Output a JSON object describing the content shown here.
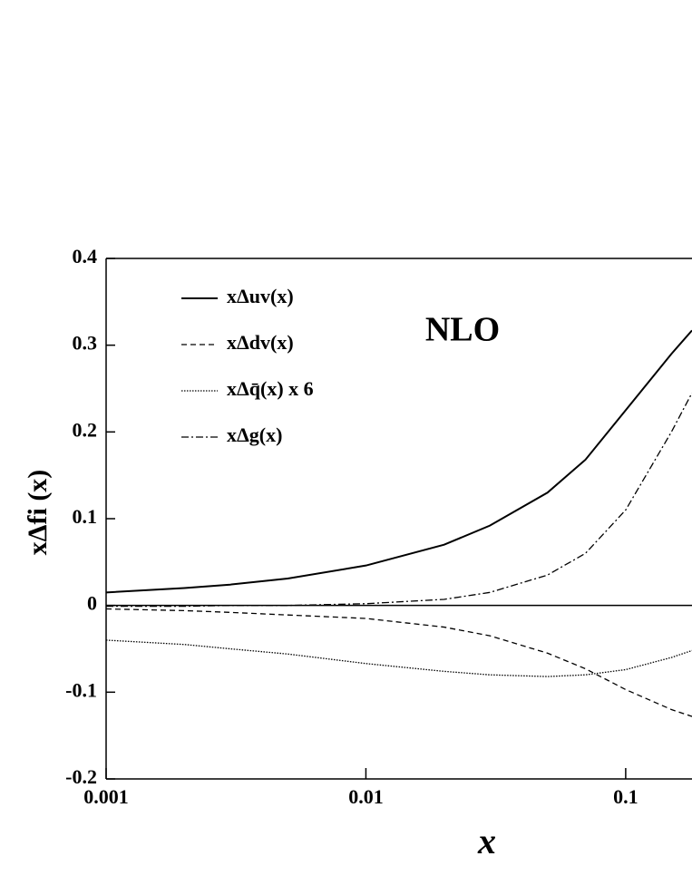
{
  "chart_data": {
    "type": "line",
    "y_label": "xΔfi (x)",
    "x_label": "x",
    "annotation": "NLO",
    "xscale": "log",
    "xlim": [
      0.001,
      0.18
    ],
    "xticks": [
      0.001,
      0.01,
      0.1
    ],
    "ylim": [
      -0.2,
      0.4
    ],
    "yticks": [
      0.4,
      0.3,
      0.2,
      0.1,
      0,
      -0.1,
      -0.2
    ],
    "zero_line": true,
    "legend": "upper left",
    "x": [
      0.001,
      0.002,
      0.003,
      0.005,
      0.01,
      0.02,
      0.03,
      0.05,
      0.07,
      0.1,
      0.15,
      0.18
    ],
    "series": [
      {
        "name": "xΔuv(x)",
        "color": "#000000",
        "dash": "none",
        "values": [
          0.015,
          0.02,
          0.024,
          0.031,
          0.046,
          0.07,
          0.092,
          0.13,
          0.168,
          0.225,
          0.29,
          0.317
        ]
      },
      {
        "name": "xΔdv(x)",
        "color": "#000000",
        "dash": "6,4",
        "values": [
          -0.004,
          -0.006,
          -0.008,
          -0.011,
          -0.015,
          -0.025,
          -0.035,
          -0.055,
          -0.073,
          -0.097,
          -0.12,
          -0.128
        ]
      },
      {
        "name": "xΔq̄(x) x 6",
        "color": "#000000",
        "dash": "1.5,1.5",
        "values": [
          -0.04,
          -0.045,
          -0.05,
          -0.056,
          -0.067,
          -0.076,
          -0.08,
          -0.082,
          -0.08,
          -0.074,
          -0.06,
          -0.052
        ]
      },
      {
        "name": "xΔg(x)",
        "color": "#000000",
        "dash": "8,3,2,3",
        "values": [
          -0.001,
          -0.001,
          0,
          0,
          0.002,
          0.007,
          0.015,
          0.035,
          0.06,
          0.11,
          0.2,
          0.245
        ]
      }
    ]
  }
}
